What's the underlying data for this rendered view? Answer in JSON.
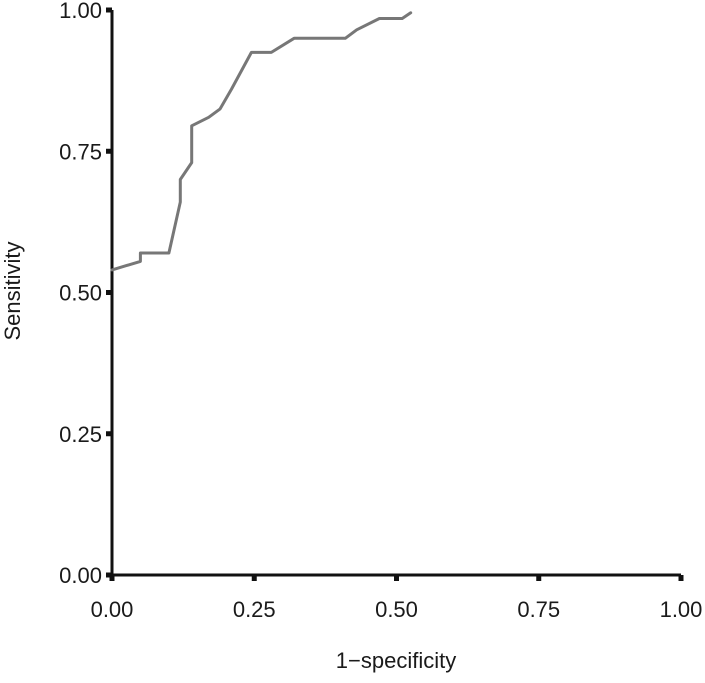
{
  "chart_data": {
    "type": "line",
    "title": "",
    "xlabel": "1−specificity",
    "ylabel": "Sensitivity",
    "xlim": [
      0,
      1
    ],
    "ylim": [
      0,
      1
    ],
    "x_ticks": [
      "0.00",
      "0.25",
      "0.50",
      "0.75",
      "1.00"
    ],
    "y_ticks": [
      "0.00",
      "0.25",
      "0.50",
      "0.75",
      "1.00"
    ],
    "grid": false,
    "legend": "none",
    "line_color": "#777777",
    "axis_color": "#111111",
    "series": [
      {
        "x": [
          0.0,
          0.05,
          0.05,
          0.1,
          0.12,
          0.12,
          0.14,
          0.14,
          0.17,
          0.19,
          0.21,
          0.245,
          0.28,
          0.32,
          0.41,
          0.43,
          0.47,
          0.51,
          0.525
        ],
        "y": [
          0.54,
          0.555,
          0.57,
          0.57,
          0.66,
          0.7,
          0.73,
          0.795,
          0.81,
          0.825,
          0.86,
          0.925,
          0.925,
          0.95,
          0.95,
          0.965,
          0.985,
          0.985,
          0.995
        ]
      }
    ]
  }
}
